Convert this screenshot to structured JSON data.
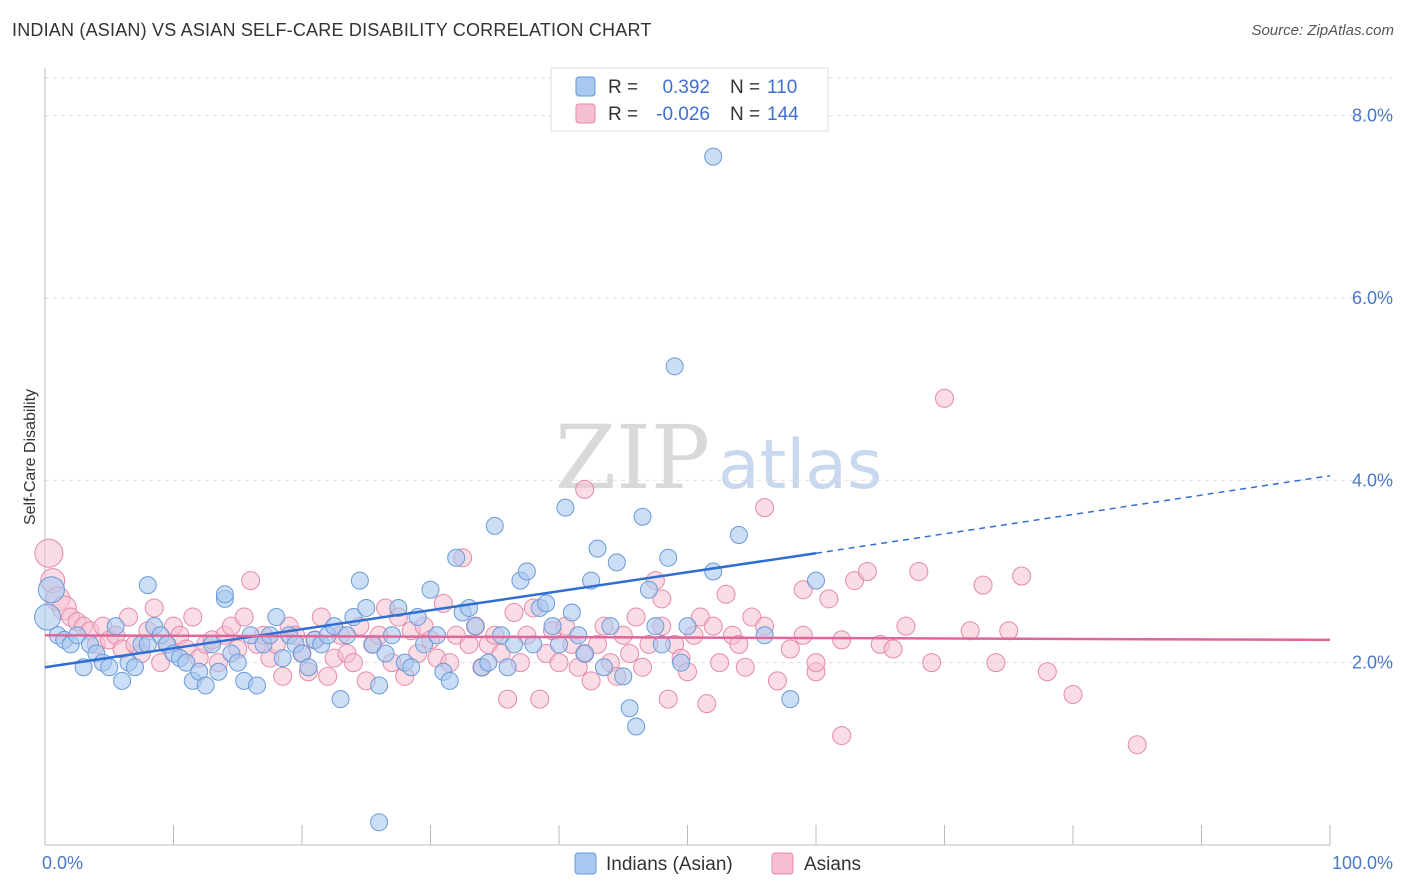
{
  "header": {
    "title": "INDIAN (ASIAN) VS ASIAN SELF-CARE DISABILITY CORRELATION CHART",
    "source": "Source: ZipAtlas.com"
  },
  "watermark": {
    "part1": "ZIP",
    "part2": "atlas"
  },
  "legend_top": {
    "rows": [
      {
        "r_label": "R =",
        "r_value": "0.392",
        "n_label": "N =",
        "n_value": "110"
      },
      {
        "r_label": "R =",
        "r_value": "-0.026",
        "n_label": "N =",
        "n_value": "144"
      }
    ]
  },
  "legend_bottom": {
    "items": [
      "Indians (Asian)",
      "Asians"
    ]
  },
  "colors": {
    "blue_fill": "#a9c8ef",
    "blue_stroke": "#6a9ad8",
    "blue_line": "#2f6fd1",
    "pink_fill": "#f6bfd0",
    "pink_stroke": "#e58aa8",
    "pink_line": "#e0669a",
    "grid": "#dddddd",
    "axis_text": "#4a78c8"
  },
  "chart_data": {
    "type": "scatter",
    "title": "INDIAN (ASIAN) VS ASIAN SELF-CARE DISABILITY CORRELATION CHART",
    "xlabel": "",
    "ylabel": "Self-Care Disability",
    "xlim": [
      0,
      100
    ],
    "ylim": [
      0,
      8.5
    ],
    "x_tick_labels": [
      "0.0%",
      "100.0%"
    ],
    "y_ticks": [
      2.0,
      4.0,
      6.0,
      8.0
    ],
    "y_tick_labels": [
      "2.0%",
      "4.0%",
      "6.0%",
      "8.0%"
    ],
    "grid": true,
    "legend_position": "top-center",
    "series": [
      {
        "name": "Indians (Asian)",
        "R": 0.392,
        "N": 110,
        "trend": {
          "x0": 0,
          "y0": 1.95,
          "x1": 60,
          "y1": 3.2,
          "dashed_to_x": 100,
          "dashed_to_y": 4.05
        },
        "points": [
          [
            0.2,
            2.5
          ],
          [
            0.5,
            2.8
          ],
          [
            1,
            2.3
          ],
          [
            1.5,
            2.25
          ],
          [
            2,
            2.2
          ],
          [
            2.5,
            2.3
          ],
          [
            3,
            1.95
          ],
          [
            3.5,
            2.2
          ],
          [
            4,
            2.1
          ],
          [
            4.5,
            2.0
          ],
          [
            5,
            1.95
          ],
          [
            5.5,
            2.4
          ],
          [
            6,
            1.8
          ],
          [
            6.5,
            2.0
          ],
          [
            7,
            1.95
          ],
          [
            7.5,
            2.2
          ],
          [
            8,
            2.2
          ],
          [
            8.5,
            2.4
          ],
          [
            9,
            2.3
          ],
          [
            9.5,
            2.2
          ],
          [
            10,
            2.1
          ],
          [
            10.5,
            2.05
          ],
          [
            11,
            2.0
          ],
          [
            11.5,
            1.8
          ],
          [
            12,
            1.9
          ],
          [
            12.5,
            1.75
          ],
          [
            13,
            2.2
          ],
          [
            13.5,
            1.9
          ],
          [
            14,
            2.7
          ],
          [
            14.5,
            2.1
          ],
          [
            15,
            2.0
          ],
          [
            15.5,
            1.8
          ],
          [
            16,
            2.3
          ],
          [
            16.5,
            1.75
          ],
          [
            17,
            2.2
          ],
          [
            17.5,
            2.3
          ],
          [
            18,
            2.5
          ],
          [
            18.5,
            2.05
          ],
          [
            19,
            2.3
          ],
          [
            19.5,
            2.2
          ],
          [
            20,
            2.1
          ],
          [
            20.5,
            1.95
          ],
          [
            21,
            2.25
          ],
          [
            21.5,
            2.2
          ],
          [
            22,
            2.3
          ],
          [
            22.5,
            2.4
          ],
          [
            23,
            1.6
          ],
          [
            23.5,
            2.3
          ],
          [
            24,
            2.5
          ],
          [
            24.5,
            2.9
          ],
          [
            25,
            2.6
          ],
          [
            25.5,
            2.2
          ],
          [
            26,
            1.75
          ],
          [
            26.5,
            2.1
          ],
          [
            27,
            2.3
          ],
          [
            27.5,
            2.6
          ],
          [
            28,
            2.0
          ],
          [
            28.5,
            1.95
          ],
          [
            29,
            2.5
          ],
          [
            29.5,
            2.2
          ],
          [
            30,
            2.8
          ],
          [
            30.5,
            2.3
          ],
          [
            31,
            1.9
          ],
          [
            31.5,
            1.8
          ],
          [
            32,
            3.15
          ],
          [
            32.5,
            2.55
          ],
          [
            33,
            2.6
          ],
          [
            33.5,
            2.4
          ],
          [
            34,
            1.95
          ],
          [
            34.5,
            2.0
          ],
          [
            35,
            3.5
          ],
          [
            35.5,
            2.3
          ],
          [
            36,
            1.95
          ],
          [
            36.5,
            2.2
          ],
          [
            37,
            2.9
          ],
          [
            37.5,
            3.0
          ],
          [
            38,
            2.2
          ],
          [
            38.5,
            2.6
          ],
          [
            39,
            2.65
          ],
          [
            39.5,
            2.4
          ],
          [
            40,
            2.2
          ],
          [
            40.5,
            3.7
          ],
          [
            41,
            2.55
          ],
          [
            41.5,
            2.3
          ],
          [
            42,
            2.1
          ],
          [
            42.5,
            2.9
          ],
          [
            43,
            3.25
          ],
          [
            43.5,
            1.95
          ],
          [
            44,
            2.4
          ],
          [
            44.5,
            3.1
          ],
          [
            45,
            1.85
          ],
          [
            45.5,
            1.5
          ],
          [
            46,
            1.3
          ],
          [
            46.5,
            3.6
          ],
          [
            47,
            2.8
          ],
          [
            47.5,
            2.4
          ],
          [
            48,
            2.2
          ],
          [
            48.5,
            3.15
          ],
          [
            49,
            5.25
          ],
          [
            49.5,
            2.0
          ],
          [
            50,
            2.4
          ],
          [
            52,
            3.0
          ],
          [
            54,
            3.4
          ],
          [
            56,
            2.3
          ],
          [
            58,
            1.6
          ],
          [
            60,
            2.9
          ],
          [
            26,
            0.25
          ],
          [
            14,
            2.75
          ],
          [
            52,
            7.55
          ],
          [
            8,
            2.85
          ]
        ]
      },
      {
        "name": "Asians",
        "R": -0.026,
        "N": 144,
        "trend": {
          "x0": 0,
          "y0": 2.3,
          "x1": 100,
          "y1": 2.25
        },
        "points": [
          [
            0.3,
            3.2
          ],
          [
            0.6,
            2.9
          ],
          [
            1,
            2.7
          ],
          [
            1.5,
            2.6
          ],
          [
            2,
            2.5
          ],
          [
            2.5,
            2.45
          ],
          [
            3,
            2.4
          ],
          [
            3.5,
            2.35
          ],
          [
            4,
            2.2
          ],
          [
            4.5,
            2.4
          ],
          [
            5,
            2.25
          ],
          [
            5.5,
            2.3
          ],
          [
            6,
            2.15
          ],
          [
            6.5,
            2.5
          ],
          [
            7,
            2.2
          ],
          [
            7.5,
            2.1
          ],
          [
            8,
            2.35
          ],
          [
            8.5,
            2.6
          ],
          [
            9,
            2.0
          ],
          [
            9.5,
            2.2
          ],
          [
            10,
            2.4
          ],
          [
            10.5,
            2.3
          ],
          [
            11,
            2.15
          ],
          [
            11.5,
            2.5
          ],
          [
            12,
            2.05
          ],
          [
            12.5,
            2.2
          ],
          [
            13,
            2.25
          ],
          [
            13.5,
            2.0
          ],
          [
            14,
            2.3
          ],
          [
            14.5,
            2.4
          ],
          [
            15,
            2.15
          ],
          [
            15.5,
            2.5
          ],
          [
            16,
            2.9
          ],
          [
            16.5,
            2.2
          ],
          [
            17,
            2.3
          ],
          [
            17.5,
            2.05
          ],
          [
            18,
            2.2
          ],
          [
            18.5,
            1.85
          ],
          [
            19,
            2.4
          ],
          [
            19.5,
            2.3
          ],
          [
            20,
            2.1
          ],
          [
            20.5,
            1.9
          ],
          [
            21,
            2.25
          ],
          [
            21.5,
            2.5
          ],
          [
            22,
            1.85
          ],
          [
            22.5,
            2.05
          ],
          [
            23,
            2.3
          ],
          [
            23.5,
            2.1
          ],
          [
            24,
            2.0
          ],
          [
            24.5,
            2.4
          ],
          [
            25,
            1.8
          ],
          [
            25.5,
            2.2
          ],
          [
            26,
            2.3
          ],
          [
            26.5,
            2.6
          ],
          [
            27,
            2.0
          ],
          [
            27.5,
            2.5
          ],
          [
            28,
            1.85
          ],
          [
            28.5,
            2.35
          ],
          [
            29,
            2.1
          ],
          [
            29.5,
            2.4
          ],
          [
            30,
            2.25
          ],
          [
            30.5,
            2.05
          ],
          [
            31,
            2.65
          ],
          [
            31.5,
            2.0
          ],
          [
            32,
            2.3
          ],
          [
            32.5,
            3.15
          ],
          [
            33,
            2.2
          ],
          [
            33.5,
            2.4
          ],
          [
            34,
            1.95
          ],
          [
            34.5,
            2.2
          ],
          [
            35,
            2.3
          ],
          [
            35.5,
            2.1
          ],
          [
            36,
            1.6
          ],
          [
            36.5,
            2.55
          ],
          [
            37,
            2.0
          ],
          [
            37.5,
            2.3
          ],
          [
            38,
            2.6
          ],
          [
            38.5,
            1.6
          ],
          [
            39,
            2.1
          ],
          [
            39.5,
            2.35
          ],
          [
            40,
            2.0
          ],
          [
            40.5,
            2.4
          ],
          [
            41,
            2.2
          ],
          [
            41.5,
            1.95
          ],
          [
            42,
            2.1
          ],
          [
            42.5,
            1.8
          ],
          [
            43,
            2.2
          ],
          [
            43.5,
            2.4
          ],
          [
            44,
            2.0
          ],
          [
            44.5,
            1.85
          ],
          [
            45,
            2.3
          ],
          [
            45.5,
            2.1
          ],
          [
            46,
            2.5
          ],
          [
            46.5,
            1.95
          ],
          [
            47,
            2.2
          ],
          [
            47.5,
            2.9
          ],
          [
            48,
            2.4
          ],
          [
            48.5,
            1.6
          ],
          [
            49,
            2.2
          ],
          [
            49.5,
            2.05
          ],
          [
            50,
            1.9
          ],
          [
            50.5,
            2.3
          ],
          [
            51,
            2.5
          ],
          [
            51.5,
            1.55
          ],
          [
            52,
            2.4
          ],
          [
            52.5,
            2.0
          ],
          [
            53,
            2.75
          ],
          [
            53.5,
            2.3
          ],
          [
            54,
            2.2
          ],
          [
            54.5,
            1.95
          ],
          [
            55,
            2.5
          ],
          [
            56,
            2.4
          ],
          [
            57,
            1.8
          ],
          [
            58,
            2.15
          ],
          [
            59,
            2.3
          ],
          [
            60,
            1.9
          ],
          [
            61,
            2.7
          ],
          [
            62,
            2.25
          ],
          [
            63,
            2.9
          ],
          [
            64,
            3.0
          ],
          [
            65,
            2.2
          ],
          [
            66,
            2.15
          ],
          [
            67,
            2.4
          ],
          [
            68,
            3.0
          ],
          [
            69,
            2.0
          ],
          [
            70,
            4.9
          ],
          [
            72,
            2.35
          ],
          [
            73,
            2.85
          ],
          [
            74,
            2.0
          ],
          [
            75,
            2.35
          ],
          [
            76,
            2.95
          ],
          [
            80,
            1.65
          ],
          [
            85,
            1.1
          ],
          [
            78,
            1.9
          ],
          [
            62,
            1.2
          ],
          [
            56,
            3.7
          ],
          [
            59,
            2.8
          ],
          [
            42,
            3.9
          ],
          [
            48,
            2.7
          ],
          [
            60,
            2.0
          ]
        ]
      }
    ]
  }
}
